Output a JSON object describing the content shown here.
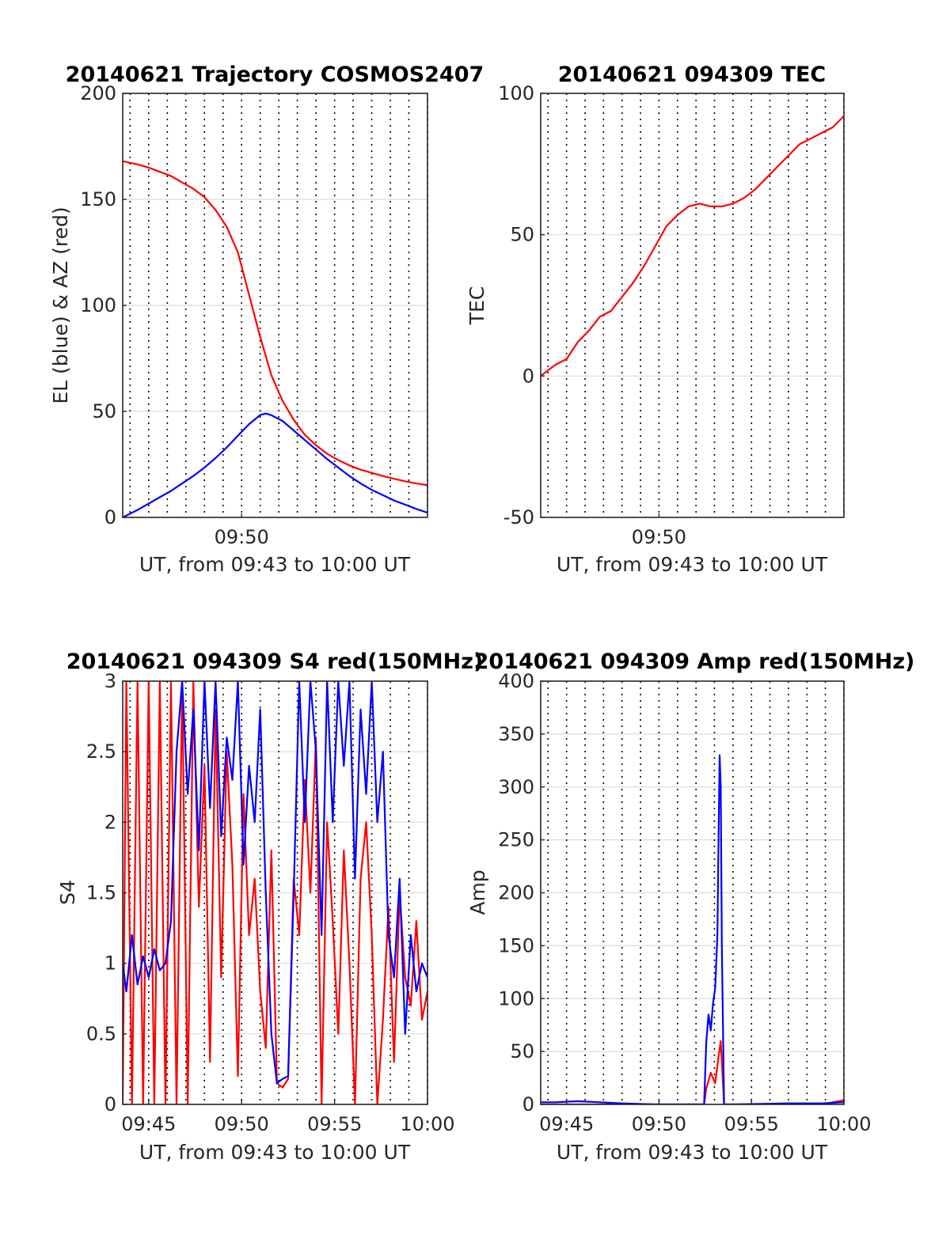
{
  "chart_data": [
    {
      "id": "traj",
      "type": "line",
      "title": "20140621 Trajectory COSMOS2407",
      "xlabel": "UT, from 09:43 to 10:00 UT",
      "ylabel": "EL (blue) & AZ (red)",
      "xlim": [
        9.7267,
        10.0
      ],
      "ylim": [
        0,
        200
      ],
      "yticks": [
        0,
        50,
        100,
        150,
        200
      ],
      "xticks": [
        {
          "x": 9.8333,
          "label": "09:50"
        }
      ],
      "grid_x": [
        9.7333,
        9.75,
        9.7667,
        9.7833,
        9.8,
        9.8167,
        9.8333,
        9.85,
        9.8667,
        9.8833,
        9.9,
        9.9167,
        9.9333,
        9.95,
        9.9667,
        9.9833,
        10.0
      ],
      "series": [
        {
          "color": "#ff0000",
          "x": [
            9.7267,
            9.74,
            9.75,
            9.76,
            9.77,
            9.78,
            9.79,
            9.8,
            9.81,
            9.82,
            9.83,
            9.84,
            9.85,
            9.86,
            9.87,
            9.88,
            9.89,
            9.9,
            9.91,
            9.92,
            9.93,
            9.94,
            9.95,
            9.96,
            9.97,
            9.98,
            9.99,
            10.0
          ],
          "y": [
            168,
            166.5,
            165,
            163,
            161,
            158,
            155,
            151,
            145,
            137,
            125,
            105,
            85,
            67,
            55,
            46,
            39,
            34,
            30,
            27,
            24.5,
            22.5,
            21,
            19.5,
            18.2,
            17,
            16,
            15.2
          ]
        },
        {
          "color": "#0000ff",
          "x": [
            9.7267,
            9.74,
            9.75,
            9.76,
            9.77,
            9.78,
            9.79,
            9.8,
            9.81,
            9.82,
            9.83,
            9.84,
            9.85,
            9.855,
            9.86,
            9.87,
            9.88,
            9.89,
            9.9,
            9.91,
            9.92,
            9.93,
            9.94,
            9.95,
            9.96,
            9.97,
            9.98,
            9.99,
            10.0
          ],
          "y": [
            0,
            3.5,
            6.5,
            9.5,
            12.5,
            16,
            19.5,
            23.5,
            28,
            33,
            38.5,
            44,
            48.3,
            49,
            48.2,
            45.5,
            41,
            36.5,
            32,
            27.5,
            23.5,
            19.5,
            16,
            13,
            10.5,
            8,
            6,
            4,
            2.2
          ]
        }
      ]
    },
    {
      "id": "tec",
      "type": "line",
      "title": "20140621 094309 TEC",
      "xlabel": "UT, from 09:43 to 10:00 UT",
      "ylabel": "TEC",
      "xlim": [
        9.7267,
        10.0
      ],
      "ylim": [
        -50,
        100
      ],
      "yticks": [
        -50,
        0,
        50,
        100
      ],
      "xticks": [
        {
          "x": 9.8333,
          "label": "09:50"
        }
      ],
      "grid_x": [
        9.7333,
        9.75,
        9.7667,
        9.7833,
        9.8,
        9.8167,
        9.8333,
        9.85,
        9.8667,
        9.8833,
        9.9,
        9.9167,
        9.9333,
        9.95,
        9.9667,
        9.9833,
        10.0
      ],
      "series": [
        {
          "color": "#ff0000",
          "x": [
            9.7267,
            9.74,
            9.75,
            9.76,
            9.77,
            9.78,
            9.79,
            9.8,
            9.81,
            9.82,
            9.83,
            9.84,
            9.85,
            9.86,
            9.87,
            9.88,
            9.89,
            9.9,
            9.91,
            9.92,
            9.93,
            9.94,
            9.95,
            9.96,
            9.97,
            9.98,
            9.99,
            10.0
          ],
          "y": [
            0,
            4,
            6,
            12,
            16,
            21,
            23,
            28,
            33,
            39,
            46,
            53,
            57,
            60,
            61,
            60,
            60,
            61,
            63,
            66,
            70,
            74,
            78,
            82,
            84,
            86,
            88,
            92
          ]
        }
      ]
    },
    {
      "id": "s4",
      "type": "line",
      "title": "20140621 094309 S4 red(150MHz)",
      "xlabel": "UT, from 09:43 to 10:00 UT",
      "ylabel": "S4",
      "xlim": [
        9.7267,
        10.0
      ],
      "ylim": [
        0,
        3
      ],
      "yticks": [
        0,
        0.5,
        1,
        1.5,
        2,
        2.5,
        3
      ],
      "xticks": [
        {
          "x": 9.75,
          "label": "09:45"
        },
        {
          "x": 9.8333,
          "label": "09:50"
        },
        {
          "x": 9.9167,
          "label": "09:55"
        },
        {
          "x": 10.0,
          "label": "10:00"
        }
      ],
      "grid_x": [
        9.7333,
        9.75,
        9.7667,
        9.7833,
        9.8,
        9.8167,
        9.8333,
        9.85,
        9.8667,
        9.8833,
        9.9,
        9.9167,
        9.9333,
        9.95,
        9.9667,
        9.9833,
        10.0
      ],
      "series": [
        {
          "color": "#ff0000",
          "x": [
            9.7267,
            9.73,
            9.735,
            9.74,
            9.745,
            9.75,
            9.755,
            9.76,
            9.765,
            9.77,
            9.775,
            9.78,
            9.785,
            9.79,
            9.795,
            9.8,
            9.805,
            9.81,
            9.815,
            9.82,
            9.825,
            9.83,
            9.835,
            9.84,
            9.845,
            9.85,
            9.855,
            9.86,
            9.865,
            9.87,
            9.875,
            9.88,
            9.885,
            9.89,
            9.895,
            9.9,
            9.905,
            9.91,
            9.915,
            9.92,
            9.925,
            9.93,
            9.935,
            9.94,
            9.945,
            9.95,
            9.955,
            9.96,
            9.965,
            9.97,
            9.975,
            9.98,
            9.985,
            9.99,
            9.995,
            10.0
          ],
          "y": [
            0,
            3,
            0,
            3,
            0,
            3,
            0,
            3,
            0,
            3,
            0,
            3,
            0,
            3,
            1.4,
            2.4,
            0.3,
            2.8,
            0.9,
            2.5,
            1.7,
            0.2,
            2.2,
            1.2,
            1.6,
            0.8,
            0.4,
            1.8,
            0.15,
            0.12,
            0.18,
            1.6,
            1.2,
            2.3,
            1.5,
            2.6,
            0.0,
            2.0,
            1.3,
            0.5,
            1.8,
            1.0,
            0.0,
            1.6,
            2.0,
            1.2,
            0.0,
            0.6,
            1.4,
            0.3,
            1.5,
            0.9,
            0.7,
            1.3,
            0.6,
            0.8
          ]
        },
        {
          "color": "#0000ff",
          "x": [
            9.7267,
            9.73,
            9.735,
            9.74,
            9.745,
            9.75,
            9.755,
            9.76,
            9.765,
            9.77,
            9.775,
            9.78,
            9.785,
            9.79,
            9.795,
            9.8,
            9.805,
            9.81,
            9.815,
            9.82,
            9.825,
            9.83,
            9.835,
            9.84,
            9.845,
            9.85,
            9.855,
            9.86,
            9.865,
            9.87,
            9.875,
            9.88,
            9.885,
            9.89,
            9.895,
            9.9,
            9.905,
            9.91,
            9.915,
            9.92,
            9.925,
            9.93,
            9.935,
            9.94,
            9.945,
            9.95,
            9.955,
            9.96,
            9.965,
            9.97,
            9.975,
            9.98,
            9.985,
            9.99,
            9.995,
            10.0
          ],
          "y": [
            1.0,
            0.8,
            1.2,
            0.85,
            1.05,
            0.9,
            1.1,
            0.95,
            1.0,
            1.3,
            2.5,
            3,
            2.2,
            2.8,
            1.8,
            3,
            2.1,
            3,
            1.9,
            2.6,
            2.3,
            3,
            1.7,
            2.4,
            2.0,
            2.8,
            1.5,
            0.5,
            0.15,
            0.18,
            0.2,
            1.5,
            3,
            2.0,
            3,
            2.5,
            1.2,
            3,
            2.0,
            3,
            2.4,
            3,
            1.6,
            2.8,
            2.2,
            3,
            2.0,
            2.5,
            1.2,
            0.9,
            1.6,
            0.5,
            1.2,
            0.8,
            1.0,
            0.9
          ]
        }
      ]
    },
    {
      "id": "amp",
      "type": "line",
      "title": "20140621 094309 Amp red(150MHz)",
      "xlabel": "UT, from 09:43 to 10:00 UT",
      "ylabel": "Amp",
      "xlim": [
        9.7267,
        10.0
      ],
      "ylim": [
        0,
        400
      ],
      "yticks": [
        0,
        50,
        100,
        150,
        200,
        250,
        300,
        350,
        400
      ],
      "xticks": [
        {
          "x": 9.75,
          "label": "09:45"
        },
        {
          "x": 9.8333,
          "label": "09:50"
        },
        {
          "x": 9.9167,
          "label": "09:55"
        },
        {
          "x": 10.0,
          "label": "10:00"
        }
      ],
      "grid_x": [
        9.7333,
        9.75,
        9.7667,
        9.7833,
        9.8,
        9.8167,
        9.8333,
        9.85,
        9.8667,
        9.8833,
        9.9,
        9.9167,
        9.9333,
        9.95,
        9.9667,
        9.9833,
        10.0
      ],
      "series": [
        {
          "color": "#ff0000",
          "x": [
            9.7267,
            9.78,
            9.83,
            9.86,
            9.874,
            9.876,
            9.88,
            9.884,
            9.887,
            9.889,
            9.892,
            9.9,
            9.95,
            9.98,
            9.99,
            10.0
          ],
          "y": [
            0,
            0,
            0,
            0,
            0,
            15,
            30,
            20,
            45,
            60,
            0,
            0,
            0,
            0,
            2,
            4
          ]
        },
        {
          "color": "#0000ff",
          "x": [
            9.7267,
            9.74,
            9.76,
            9.78,
            9.8,
            9.83,
            9.86,
            9.874,
            9.876,
            9.878,
            9.88,
            9.882,
            9.884,
            9.886,
            9.887,
            9.888,
            9.889,
            9.89,
            9.892,
            9.895,
            9.9,
            9.95,
            9.98,
            10.0
          ],
          "y": [
            2,
            2,
            3,
            2,
            1,
            0,
            0,
            0,
            60,
            85,
            70,
            95,
            110,
            160,
            250,
            330,
            300,
            150,
            0,
            0,
            0,
            1,
            1,
            2
          ]
        }
      ]
    }
  ]
}
